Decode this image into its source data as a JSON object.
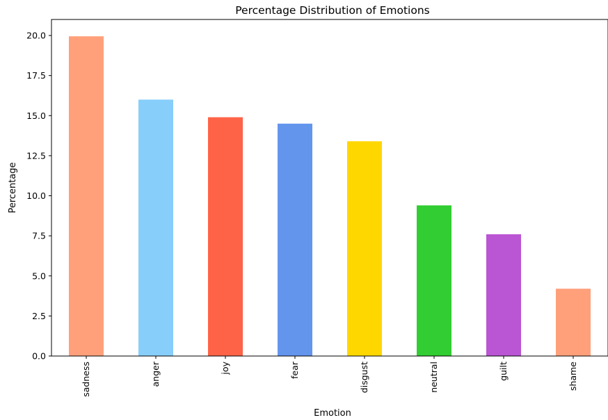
{
  "chart_data": {
    "type": "bar",
    "title": "Percentage Distribution of Emotions",
    "xlabel": "Emotion",
    "ylabel": "Percentage",
    "categories": [
      "sadness",
      "anger",
      "joy",
      "fear",
      "disgust",
      "neutral",
      "guilt",
      "shame"
    ],
    "values": [
      19.95,
      16.0,
      14.9,
      14.5,
      13.4,
      9.4,
      7.6,
      4.2
    ],
    "colors": [
      "#FFA07A",
      "#87CEFA",
      "#FF6347",
      "#6495ED",
      "#FFD700",
      "#32CD32",
      "#BA55D3",
      "#FFA07A"
    ],
    "ylim": [
      0,
      21
    ],
    "yticks": [
      "0.0",
      "2.5",
      "5.0",
      "7.5",
      "10.0",
      "12.5",
      "15.0",
      "17.5",
      "20.0"
    ],
    "grid": false,
    "legend": false
  }
}
